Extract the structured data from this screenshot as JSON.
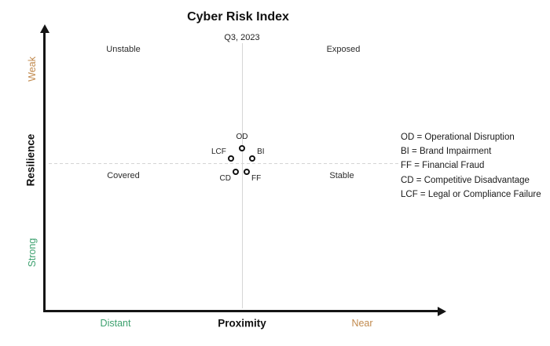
{
  "chart_data": {
    "type": "scatter",
    "title": "Cyber Risk Index",
    "subtitle": "Q3, 2023",
    "x_axis": {
      "label": "Proximity",
      "low_label": "Distant",
      "high_label": "Near",
      "range": [
        0,
        1
      ]
    },
    "y_axis": {
      "label": "Resilience",
      "high_label": "Weak",
      "low_label": "Strong",
      "range": [
        0,
        1
      ]
    },
    "quadrant_labels": {
      "top_left": "Unstable",
      "top_right": "Exposed",
      "bottom_left": "Covered",
      "bottom_right": "Stable"
    },
    "points": [
      {
        "label": "OD",
        "name": "Operational Disruption",
        "x": 0.5,
        "y": 0.591,
        "label_placement": "above"
      },
      {
        "label": "LCF",
        "name": "Legal or Compliance Failure",
        "x": 0.472,
        "y": 0.554,
        "label_placement": "upper-left"
      },
      {
        "label": "BI",
        "name": "Brand Impairment",
        "x": 0.526,
        "y": 0.554,
        "label_placement": "upper-right"
      },
      {
        "label": "CD",
        "name": "Competitive Disadvantage",
        "x": 0.484,
        "y": 0.506,
        "label_placement": "lower-left"
      },
      {
        "label": "FF",
        "name": "Financial Fraud",
        "x": 0.512,
        "y": 0.506,
        "label_placement": "lower-right"
      }
    ],
    "legend": [
      "OD = Operational Disruption",
      "BI = Brand Impairment",
      "FF = Financial Fraud",
      "CD = Competitive Disadvantage",
      "LCF = Legal or Compliance Failure"
    ],
    "legend_position": "right",
    "grid": "center-crosshair",
    "colors": {
      "high_end_label": "#c18a4e",
      "low_end_label": "#3ca06e",
      "axis": "#141414",
      "gridline": "#d6d6d6",
      "text": "#1f1f1f",
      "point_ring": "#111111",
      "point_fill": "#ffffff"
    }
  }
}
